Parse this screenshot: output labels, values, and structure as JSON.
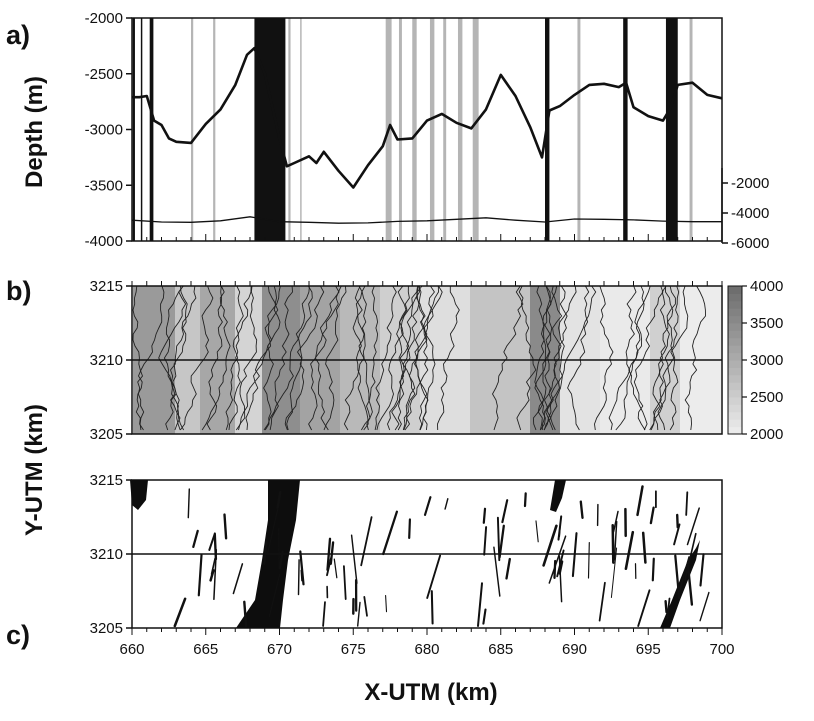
{
  "chart_data": [
    {
      "panel": "a)",
      "type": "line",
      "xlabel": "",
      "ylabel": "Depth (m)",
      "xlim": [
        660,
        700
      ],
      "ylim": [
        -4000,
        -2000
      ],
      "y_ticks": [
        "-2000",
        "-2500",
        "-3000",
        "-3500",
        "-4000"
      ],
      "secondary_y_ticks": [
        "-2000",
        "-4000",
        "-6000"
      ],
      "secondary_ylim": [
        -6000,
        -2000
      ],
      "series": [
        {
          "x": [
            660,
            660.5,
            661,
            661.5,
            662,
            662.5,
            663,
            664,
            665,
            666,
            667,
            667.8,
            668.3,
            669,
            670,
            670.5,
            671,
            672,
            672.5,
            673,
            674,
            675,
            676,
            677,
            677.5,
            678,
            679,
            680,
            681,
            682,
            683,
            684,
            685,
            686,
            687,
            687.8,
            688.3,
            689,
            690,
            691,
            692,
            693,
            693.5,
            694,
            695,
            696,
            696.5,
            697,
            698,
            699,
            700
          ],
          "values": [
            -2710,
            -2710,
            -2700,
            -2920,
            -2960,
            -3080,
            -3110,
            -3120,
            -2950,
            -2820,
            -2600,
            -2330,
            -2270,
            -2500,
            -3080,
            -3330,
            -3300,
            -3240,
            -3300,
            -3200,
            -3370,
            -3520,
            -3320,
            -3150,
            -2960,
            -3090,
            -3080,
            -2920,
            -2860,
            -2940,
            -2990,
            -2820,
            -2510,
            -2700,
            -2980,
            -3250,
            -2830,
            -2790,
            -2690,
            -2600,
            -2590,
            -2620,
            -2580,
            -2800,
            -2880,
            -2920,
            -2810,
            -2600,
            -2580,
            -2690,
            -2720
          ]
        },
        {
          "axis": "secondary",
          "x": [
            660,
            662,
            664,
            666,
            668,
            670,
            672,
            674,
            676,
            678,
            680,
            682,
            684,
            686,
            688,
            690,
            692,
            694,
            696,
            698,
            700
          ],
          "values": [
            -4480,
            -4600,
            -4620,
            -4520,
            -4250,
            -4580,
            -4620,
            -4680,
            -4660,
            -4560,
            -4520,
            -4420,
            -4320,
            -4480,
            -4600,
            -4400,
            -4420,
            -4460,
            -4540,
            -4580,
            -4580
          ]
        }
      ],
      "gaps": [
        {
          "x0": 660.05,
          "x1": 660.2,
          "tone": "dark"
        },
        {
          "x0": 660.6,
          "x1": 660.7,
          "tone": "dark"
        },
        {
          "x0": 661.2,
          "x1": 661.45,
          "tone": "dark"
        },
        {
          "x0": 664.0,
          "x1": 664.15,
          "tone": "light"
        },
        {
          "x0": 665.5,
          "x1": 665.65,
          "tone": "light"
        },
        {
          "x0": 668.3,
          "x1": 670.4,
          "tone": "dark"
        },
        {
          "x0": 670.6,
          "x1": 670.75,
          "tone": "light"
        },
        {
          "x0": 671.4,
          "x1": 671.5,
          "tone": "light"
        },
        {
          "x0": 677.2,
          "x1": 677.6,
          "tone": "light"
        },
        {
          "x0": 678.1,
          "x1": 678.3,
          "tone": "light"
        },
        {
          "x0": 679.0,
          "x1": 679.3,
          "tone": "light"
        },
        {
          "x0": 680.2,
          "x1": 680.5,
          "tone": "light"
        },
        {
          "x0": 681.1,
          "x1": 681.3,
          "tone": "light"
        },
        {
          "x0": 682.1,
          "x1": 682.4,
          "tone": "light"
        },
        {
          "x0": 683.1,
          "x1": 683.5,
          "tone": "light"
        },
        {
          "x0": 688.0,
          "x1": 688.3,
          "tone": "dark"
        },
        {
          "x0": 690.2,
          "x1": 690.4,
          "tone": "light"
        },
        {
          "x0": 693.3,
          "x1": 693.6,
          "tone": "dark"
        },
        {
          "x0": 696.2,
          "x1": 697.0,
          "tone": "dark"
        },
        {
          "x0": 697.8,
          "x1": 698.0,
          "tone": "light"
        }
      ]
    },
    {
      "panel": "b)",
      "type": "heatmap",
      "xlim": [
        660,
        700
      ],
      "ylim": [
        3205,
        3215
      ],
      "y_ticks": [
        "3215",
        "3210",
        "3205"
      ],
      "colorbar_ticks": [
        "4000",
        "3500",
        "3000",
        "2500",
        "2000"
      ],
      "colorbar_range": [
        2000,
        4000
      ],
      "reference_line_y": 3210
    },
    {
      "panel": "c)",
      "type": "scatter",
      "xlabel": "X-UTM (km)",
      "ylabel": "Y-UTM (km)",
      "xlim": [
        660,
        700
      ],
      "ylim": [
        3205,
        3215
      ],
      "x_ticks": [
        "660",
        "665",
        "670",
        "675",
        "680",
        "685",
        "690",
        "695",
        "700"
      ],
      "y_ticks": [
        "3215",
        "3210",
        "3205"
      ],
      "reference_line_y": 3210
    }
  ]
}
